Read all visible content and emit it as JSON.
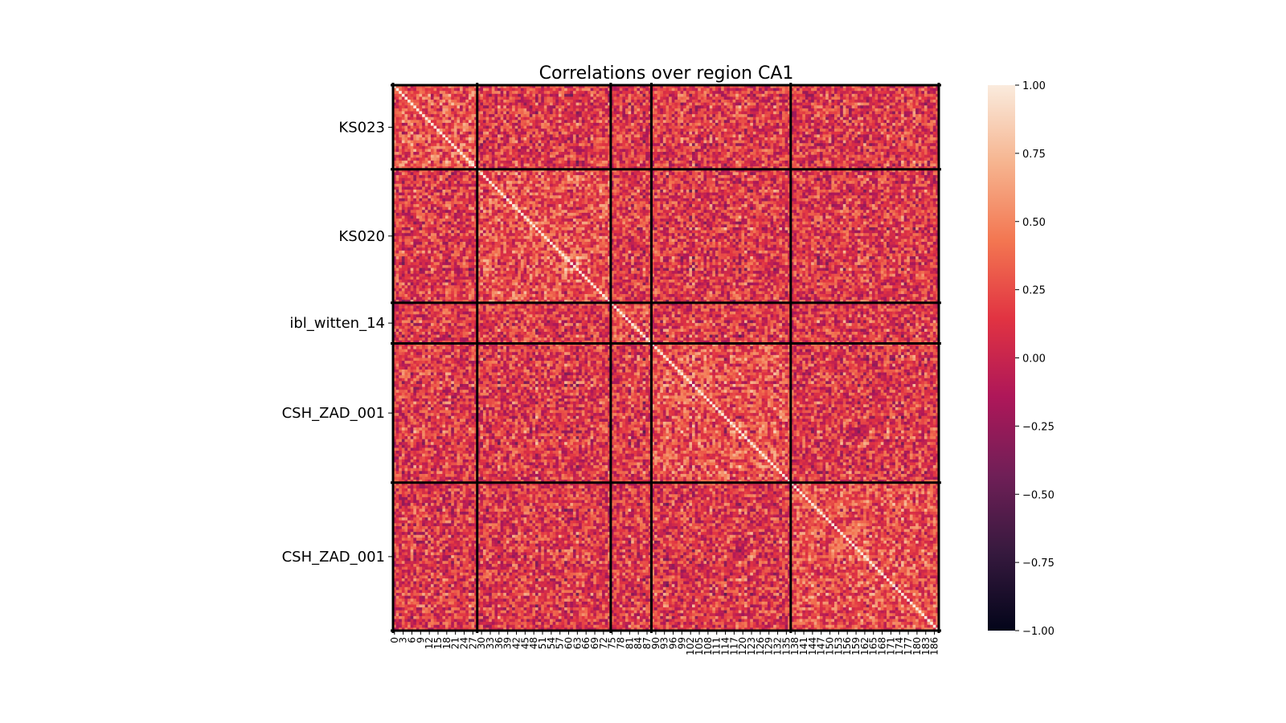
{
  "chart_data": {
    "type": "heatmap",
    "title": "Correlations over region CA1",
    "xlabel": "",
    "ylabel": "",
    "n_units": 188,
    "x_tick_step": 3,
    "x_tick_labels": [
      "0",
      "3",
      "6",
      "9",
      "12",
      "15",
      "18",
      "21",
      "24",
      "27",
      "30",
      "33",
      "36",
      "39",
      "42",
      "45",
      "48",
      "51",
      "54",
      "57",
      "60",
      "63",
      "66",
      "69",
      "72",
      "75",
      "78",
      "81",
      "84",
      "87",
      "90",
      "93",
      "96",
      "99",
      "102",
      "105",
      "108",
      "111",
      "114",
      "117",
      "120",
      "123",
      "126",
      "129",
      "132",
      "135",
      "138",
      "141",
      "144",
      "147",
      "150",
      "153",
      "156",
      "159",
      "162",
      "165",
      "168",
      "171",
      "174",
      "177",
      "180",
      "183",
      "186"
    ],
    "groups": [
      {
        "label": "KS023",
        "start": 0,
        "end": 29
      },
      {
        "label": "KS020",
        "start": 29,
        "end": 75
      },
      {
        "label": "ibl_witten_14",
        "start": 75,
        "end": 89
      },
      {
        "label": "CSH_ZAD_001",
        "start": 89,
        "end": 137
      },
      {
        "label": "CSH_ZAD_001",
        "start": 137,
        "end": 188
      }
    ],
    "color_range": [
      -1.0,
      1.0
    ],
    "colorbar_ticks": [
      {
        "value": 1.0,
        "label": "1.00"
      },
      {
        "value": 0.75,
        "label": "0.75"
      },
      {
        "value": 0.5,
        "label": "0.50"
      },
      {
        "value": 0.25,
        "label": "0.25"
      },
      {
        "value": 0.0,
        "label": "0.00"
      },
      {
        "value": -0.25,
        "label": "−0.25"
      },
      {
        "value": -0.5,
        "label": "−0.50"
      },
      {
        "value": -0.75,
        "label": "−0.75"
      },
      {
        "value": -1.0,
        "label": "−1.00"
      }
    ],
    "colormap": [
      "#03051a",
      "#36193e",
      "#701f57",
      "#ae1759",
      "#e13342",
      "#f37651",
      "#f6b48f",
      "#faebdd"
    ],
    "diagonal_value": 1.0,
    "grid": false,
    "legend": "none",
    "colorbar": "right"
  }
}
